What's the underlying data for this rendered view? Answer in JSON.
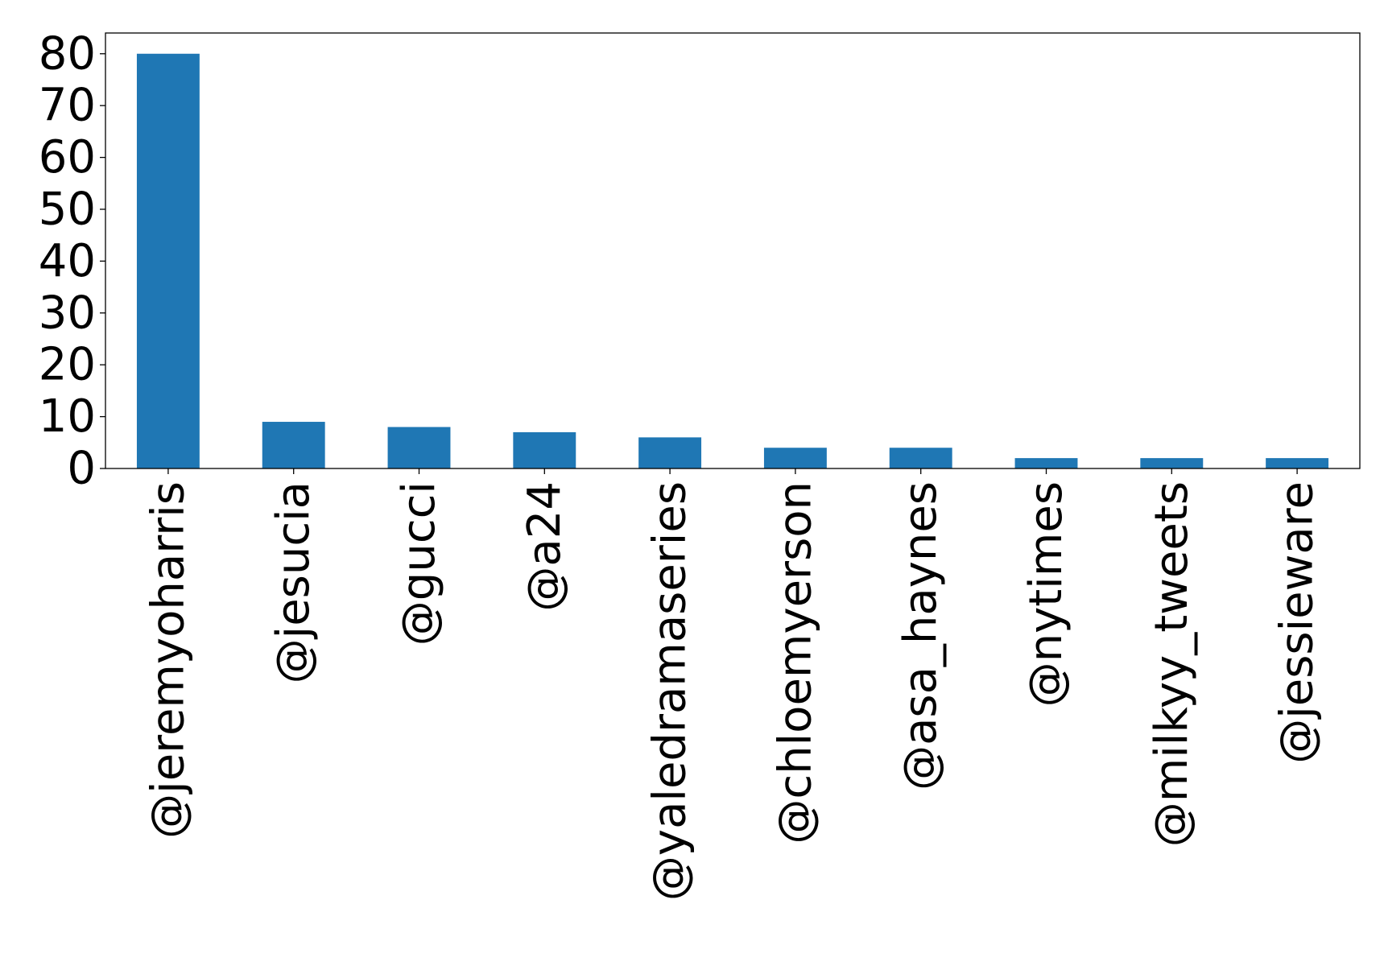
{
  "chart_data": {
    "type": "bar",
    "categories": [
      "@jeremyoharris",
      "@jesucia",
      "@gucci",
      "@a24",
      "@yaledramaseries",
      "@chloemyerson",
      "@asa_haynes",
      "@nytimes",
      "@milkyy_tweets",
      "@jessieware"
    ],
    "values": [
      80,
      9,
      8,
      7,
      6,
      4,
      4,
      2,
      2,
      2
    ],
    "title": "",
    "xlabel": "",
    "ylabel": "",
    "ylim": [
      0,
      84
    ],
    "yticks": [
      0,
      10,
      20,
      30,
      40,
      50,
      60,
      70,
      80
    ],
    "bar_color": "#1f77b4",
    "grid": false,
    "legend": false
  }
}
